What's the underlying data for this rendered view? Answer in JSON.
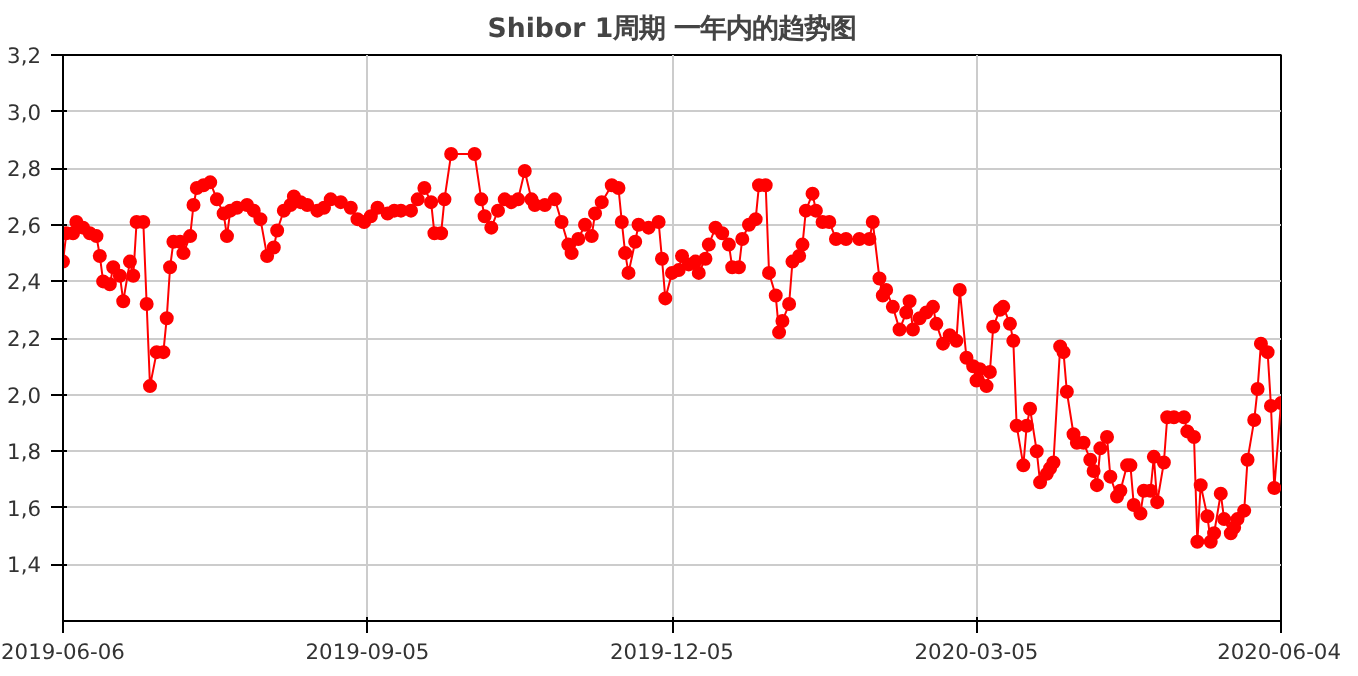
{
  "chart_data": {
    "type": "line",
    "title": "Shibor 1周期 一年内的趋势图",
    "x": [
      "2019-06-06",
      "2019-06-07",
      "2019-06-09",
      "2019-06-10",
      "2019-06-12",
      "2019-06-14",
      "2019-06-16",
      "2019-06-17",
      "2019-06-18",
      "2019-06-20",
      "2019-06-21",
      "2019-06-23",
      "2019-06-24",
      "2019-06-26",
      "2019-06-27",
      "2019-06-28",
      "2019-06-30",
      "2019-07-01",
      "2019-07-02",
      "2019-07-04",
      "2019-07-06",
      "2019-07-07",
      "2019-07-08",
      "2019-07-09",
      "2019-07-11",
      "2019-07-12",
      "2019-07-14",
      "2019-07-15",
      "2019-07-16",
      "2019-07-18",
      "2019-07-20",
      "2019-07-22",
      "2019-07-24",
      "2019-07-25",
      "2019-07-26",
      "2019-07-28",
      "2019-07-31",
      "2019-08-02",
      "2019-08-04",
      "2019-08-06",
      "2019-08-08",
      "2019-08-09",
      "2019-08-11",
      "2019-08-13",
      "2019-08-14",
      "2019-08-16",
      "2019-08-18",
      "2019-08-21",
      "2019-08-23",
      "2019-08-25",
      "2019-08-28",
      "2019-08-31",
      "2019-09-02",
      "2019-09-04",
      "2019-09-06",
      "2019-09-08",
      "2019-09-11",
      "2019-09-13",
      "2019-09-15",
      "2019-09-18",
      "2019-09-20",
      "2019-09-22",
      "2019-09-24",
      "2019-09-25",
      "2019-09-27",
      "2019-09-28",
      "2019-09-30",
      "2019-10-07",
      "2019-10-09",
      "2019-10-10",
      "2019-10-12",
      "2019-10-14",
      "2019-10-16",
      "2019-10-18",
      "2019-10-20",
      "2019-10-22",
      "2019-10-24",
      "2019-10-25",
      "2019-10-28",
      "2019-10-31",
      "2019-11-02",
      "2019-11-04",
      "2019-11-05",
      "2019-11-07",
      "2019-11-09",
      "2019-11-11",
      "2019-11-12",
      "2019-11-14",
      "2019-11-17",
      "2019-11-19",
      "2019-11-20",
      "2019-11-21",
      "2019-11-22",
      "2019-11-24",
      "2019-11-25",
      "2019-11-28",
      "2019-12-01",
      "2019-12-02",
      "2019-12-03",
      "2019-12-05",
      "2019-12-07",
      "2019-12-08",
      "2019-12-10",
      "2019-12-12",
      "2019-12-13",
      "2019-12-15",
      "2019-12-16",
      "2019-12-18",
      "2019-12-20",
      "2019-12-22",
      "2019-12-23",
      "2019-12-25",
      "2019-12-26",
      "2019-12-28",
      "2019-12-30",
      "2019-12-31",
      "2020-01-02",
      "2020-01-03",
      "2020-01-05",
      "2020-01-06",
      "2020-01-07",
      "2020-01-09",
      "2020-01-10",
      "2020-01-12",
      "2020-01-13",
      "2020-01-14",
      "2020-01-16",
      "2020-01-17",
      "2020-01-19",
      "2020-01-21",
      "2020-01-23",
      "2020-01-26",
      "2020-01-30",
      "2020-02-02",
      "2020-02-03",
      "2020-02-05",
      "2020-02-06",
      "2020-02-07",
      "2020-02-09",
      "2020-02-11",
      "2020-02-13",
      "2020-02-14",
      "2020-02-15",
      "2020-02-17",
      "2020-02-19",
      "2020-02-21",
      "2020-02-22",
      "2020-02-24",
      "2020-02-26",
      "2020-02-28",
      "2020-02-29",
      "2020-03-02",
      "2020-03-04",
      "2020-03-05",
      "2020-03-06",
      "2020-03-08",
      "2020-03-09",
      "2020-03-10",
      "2020-03-12",
      "2020-03-13",
      "2020-03-15",
      "2020-03-16",
      "2020-03-17",
      "2020-03-19",
      "2020-03-20",
      "2020-03-21",
      "2020-03-23",
      "2020-03-24",
      "2020-03-26",
      "2020-03-27",
      "2020-03-28",
      "2020-03-30",
      "2020-03-31",
      "2020-04-01",
      "2020-04-03",
      "2020-04-04",
      "2020-04-06",
      "2020-04-08",
      "2020-04-09",
      "2020-04-10",
      "2020-04-11",
      "2020-04-13",
      "2020-04-14",
      "2020-04-16",
      "2020-04-17",
      "2020-04-19",
      "2020-04-20",
      "2020-04-21",
      "2020-04-23",
      "2020-04-24",
      "2020-04-26",
      "2020-04-27",
      "2020-04-28",
      "2020-04-30",
      "2020-05-01",
      "2020-05-03",
      "2020-05-06",
      "2020-05-07",
      "2020-05-09",
      "2020-05-10",
      "2020-05-11",
      "2020-05-13",
      "2020-05-14",
      "2020-05-15",
      "2020-05-17",
      "2020-05-18",
      "2020-05-20",
      "2020-05-21",
      "2020-05-22",
      "2020-05-24",
      "2020-05-25",
      "2020-05-27",
      "2020-05-28",
      "2020-05-29",
      "2020-05-31",
      "2020-06-01",
      "2020-06-02",
      "2020-06-04"
    ],
    "series": [
      {
        "color": "#ff0000",
        "values": [
          2.47,
          2.57,
          2.57,
          2.61,
          2.59,
          2.57,
          2.56,
          2.49,
          2.4,
          2.39,
          2.45,
          2.42,
          2.33,
          2.47,
          2.42,
          2.61,
          2.61,
          2.32,
          2.03,
          2.15,
          2.15,
          2.27,
          2.45,
          2.54,
          2.54,
          2.5,
          2.56,
          2.67,
          2.73,
          2.74,
          2.75,
          2.69,
          2.64,
          2.56,
          2.65,
          2.66,
          2.67,
          2.65,
          2.62,
          2.49,
          2.52,
          2.58,
          2.65,
          2.67,
          2.7,
          2.68,
          2.67,
          2.65,
          2.66,
          2.69,
          2.68,
          2.66,
          2.62,
          2.61,
          2.63,
          2.66,
          2.64,
          2.65,
          2.65,
          2.65,
          2.69,
          2.73,
          2.68,
          2.57,
          2.57,
          2.69,
          2.85,
          2.85,
          2.69,
          2.63,
          2.59,
          2.65,
          2.69,
          2.68,
          2.69,
          2.79,
          2.69,
          2.67,
          2.67,
          2.69,
          2.61,
          2.53,
          2.5,
          2.55,
          2.6,
          2.56,
          2.64,
          2.68,
          2.74,
          2.73,
          2.61,
          2.5,
          2.43,
          2.54,
          2.6,
          2.59,
          2.61,
          2.48,
          2.34,
          2.43,
          2.44,
          2.49,
          2.46,
          2.47,
          2.43,
          2.48,
          2.53,
          2.59,
          2.57,
          2.53,
          2.45,
          2.45,
          2.55,
          2.6,
          2.62,
          2.74,
          2.74,
          2.43,
          2.35,
          2.22,
          2.26,
          2.32,
          2.47,
          2.49,
          2.53,
          2.65,
          2.71,
          2.65,
          2.61,
          2.61,
          2.55,
          2.55,
          2.55,
          2.55,
          2.61,
          2.41,
          2.35,
          2.37,
          2.31,
          2.23,
          2.29,
          2.33,
          2.23,
          2.27,
          2.29,
          2.31,
          2.25,
          2.18,
          2.21,
          2.19,
          2.37,
          2.13,
          2.1,
          2.05,
          2.09,
          2.03,
          2.08,
          2.24,
          2.3,
          2.31,
          2.25,
          2.19,
          1.89,
          1.75,
          1.89,
          1.95,
          1.8,
          1.69,
          1.72,
          1.74,
          1.76,
          2.17,
          2.15,
          2.01,
          1.86,
          1.83,
          1.83,
          1.77,
          1.73,
          1.68,
          1.81,
          1.85,
          1.71,
          1.64,
          1.66,
          1.75,
          1.75,
          1.61,
          1.58,
          1.66,
          1.66,
          1.78,
          1.62,
          1.76,
          1.92,
          1.92,
          1.92,
          1.87,
          1.85,
          1.48,
          1.68,
          1.57,
          1.48,
          1.51,
          1.65,
          1.56,
          1.51,
          1.53,
          1.56,
          1.59,
          1.77,
          1.91,
          2.02,
          2.18,
          2.15,
          1.96,
          1.67,
          1.97
        ]
      }
    ],
    "xlim": [
      "2019-06-06",
      "2020-06-04"
    ],
    "xticks": [
      "2019-06-06",
      "2019-09-05",
      "2019-12-05",
      "2020-03-05",
      "2020-06-04"
    ],
    "ylim": [
      1.2,
      3.2
    ],
    "yticks": [
      {
        "value": 1.4,
        "label": "1,4"
      },
      {
        "value": 1.6,
        "label": "1,6"
      },
      {
        "value": 1.8,
        "label": "1,8"
      },
      {
        "value": 2.0,
        "label": "2,0"
      },
      {
        "value": 2.2,
        "label": "2,2"
      },
      {
        "value": 2.4,
        "label": "2,4"
      },
      {
        "value": 2.6,
        "label": "2,6"
      },
      {
        "value": 2.8,
        "label": "2,8"
      },
      {
        "value": 3.0,
        "label": "3,0"
      },
      {
        "value": 3.2,
        "label": "3,2"
      }
    ],
    "grid": true,
    "marker": "circle",
    "line_style": "solid"
  }
}
